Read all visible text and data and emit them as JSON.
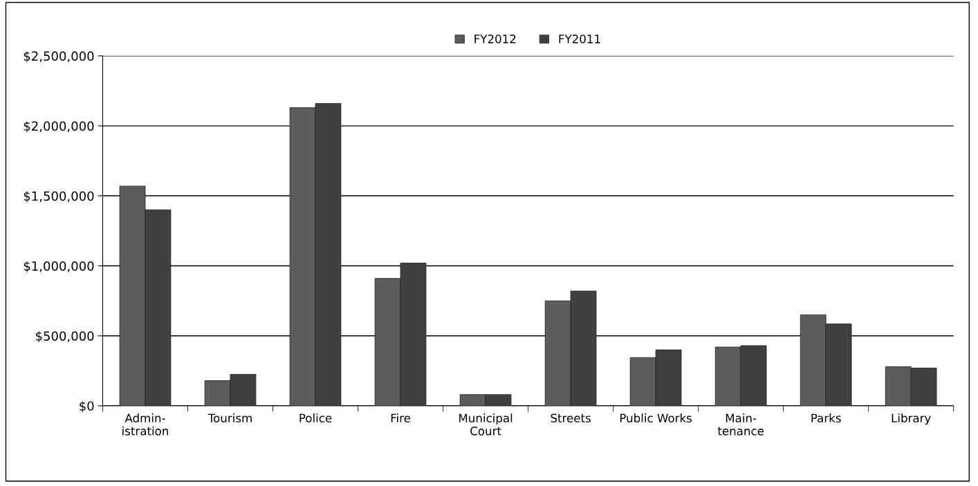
{
  "chart_data": {
    "type": "bar",
    "categories": [
      "Admin-\nistration",
      "Tourism",
      "Police",
      "Fire",
      "Municipal\nCourt",
      "Streets",
      "Public Works",
      "Main-\ntenance",
      "Parks",
      "Library"
    ],
    "series": [
      {
        "name": "FY2012",
        "color": "#5c5c5c",
        "values": [
          1570000,
          180000,
          2130000,
          910000,
          80000,
          750000,
          345000,
          420000,
          650000,
          280000
        ]
      },
      {
        "name": "FY2011",
        "color": "#404040",
        "values": [
          1400000,
          225000,
          2160000,
          1020000,
          80000,
          820000,
          400000,
          430000,
          585000,
          270000
        ]
      }
    ],
    "ylim": [
      0,
      2500000
    ],
    "yticks": [
      {
        "value": 0,
        "label": "$0"
      },
      {
        "value": 500000,
        "label": "$500,000"
      },
      {
        "value": 1000000,
        "label": "$1,000,000"
      },
      {
        "value": 1500000,
        "label": "$1,500,000"
      },
      {
        "value": 2000000,
        "label": "$2,000,000"
      },
      {
        "value": 2500000,
        "label": "$2,500,000"
      }
    ],
    "grid": "y",
    "legend": "top"
  }
}
